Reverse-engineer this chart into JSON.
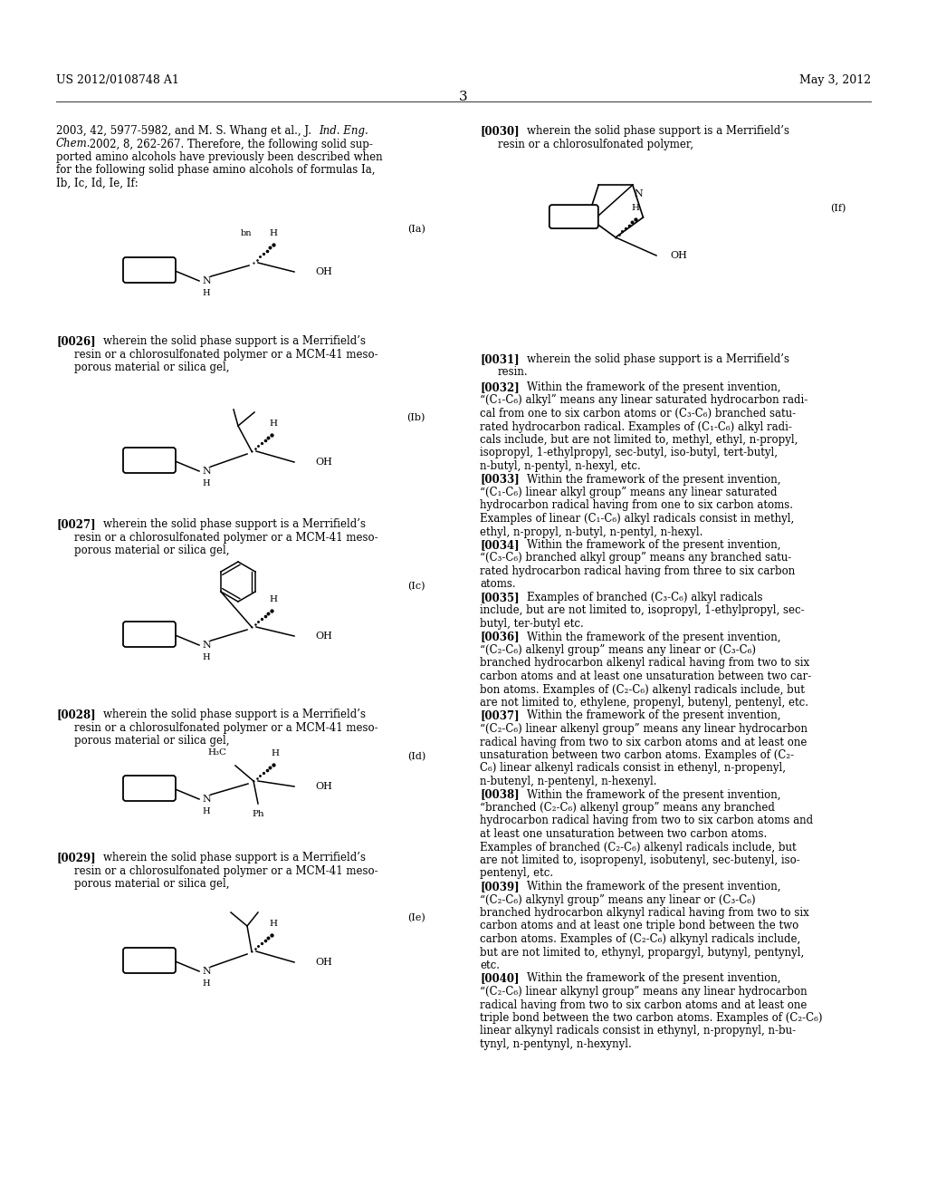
{
  "bg_color": "#ffffff",
  "header_left": "US 2012/0108748 A1",
  "header_right": "May 3, 2012",
  "page_number": "3",
  "left_intro_text": [
    [
      "2003, 42, 5977-5982, and M. S. Whang et al., J. ",
      "Ind. Eng.",
      true
    ],
    [
      "Chem.",
      true,
      " 2002, 8, 262-267. Therefore, the following solid sup-"
    ],
    [
      "ported amino alcohols have previously been described when"
    ],
    [
      "for the following solid phase amino alcohols of formulas Ia,"
    ],
    [
      "Ib, Ic, Id, Ie, If:"
    ]
  ]
}
